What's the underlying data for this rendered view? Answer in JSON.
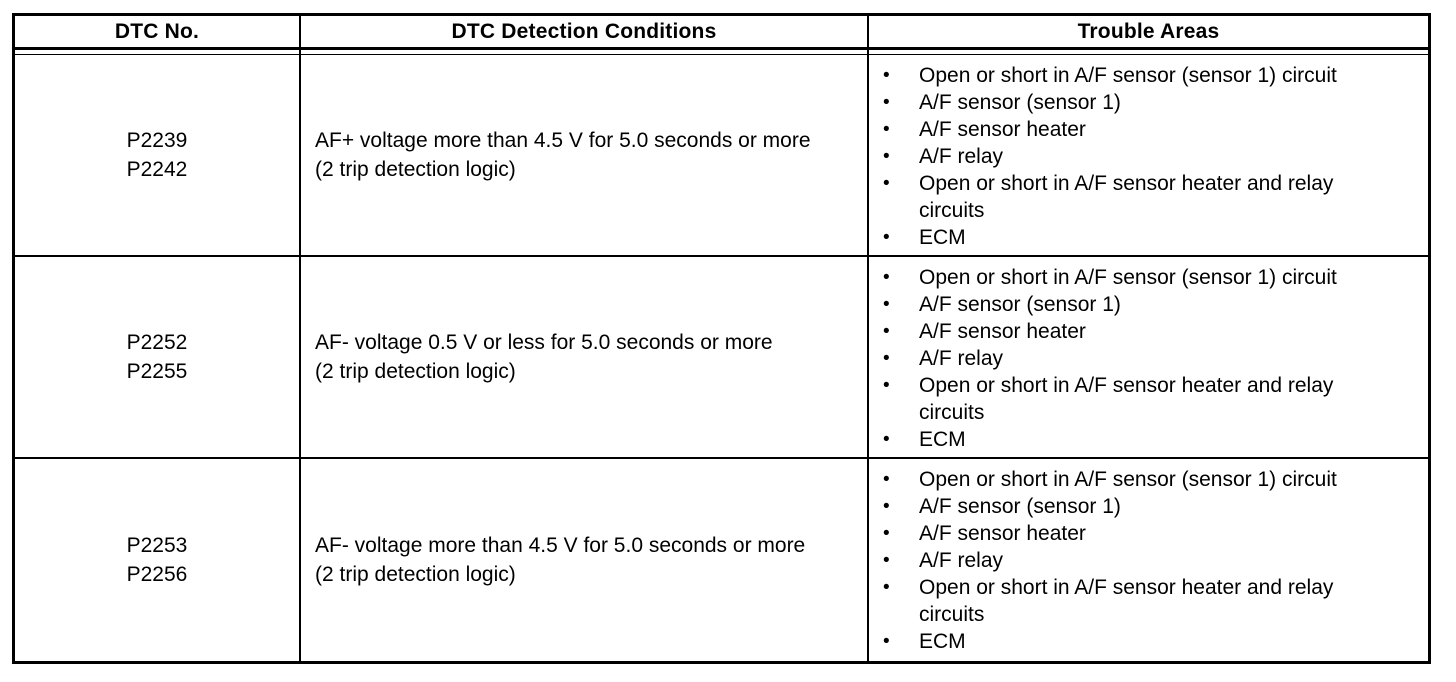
{
  "table": {
    "bullet_glyph": "•",
    "columns": [
      "DTC No.",
      "DTC Detection Conditions",
      "Trouble Areas"
    ],
    "rows": [
      {
        "codes": [
          "P2239",
          "P2242"
        ],
        "condition_lines": [
          "AF+ voltage more than 4.5 V for 5.0 seconds or more",
          "(2 trip detection logic)"
        ],
        "trouble_areas": [
          "Open or short in A/F sensor (sensor 1) circuit",
          "A/F sensor (sensor 1)",
          "A/F sensor heater",
          "A/F relay",
          "Open or short in A/F sensor heater and relay circuits",
          "ECM"
        ]
      },
      {
        "codes": [
          "P2252",
          "P2255"
        ],
        "condition_lines": [
          "AF- voltage 0.5 V or less for 5.0 seconds or more",
          "(2 trip detection logic)"
        ],
        "trouble_areas": [
          "Open or short in A/F sensor (sensor 1) circuit",
          "A/F sensor (sensor 1)",
          "A/F sensor heater",
          "A/F relay",
          "Open or short in A/F sensor heater and relay circuits",
          "ECM"
        ]
      },
      {
        "codes": [
          "P2253",
          "P2256"
        ],
        "condition_lines": [
          "AF- voltage more than 4.5 V for 5.0 seconds or more",
          "(2 trip detection logic)"
        ],
        "trouble_areas": [
          "Open or short in A/F sensor (sensor 1) circuit",
          "A/F sensor (sensor 1)",
          "A/F sensor heater",
          "A/F relay",
          "Open or short in A/F sensor heater and relay circuits",
          "ECM"
        ]
      }
    ]
  }
}
